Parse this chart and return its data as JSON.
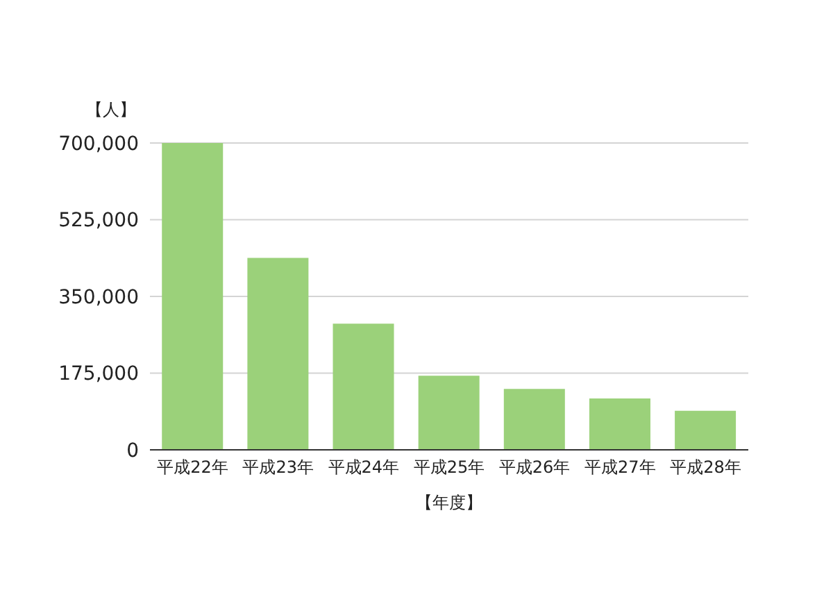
{
  "chart_data": {
    "type": "bar",
    "categories": [
      "平成22年",
      "平成23年",
      "平成24年",
      "平成25年",
      "平成26年",
      "平成27年",
      "平成28年"
    ],
    "values": [
      700000,
      438000,
      288000,
      169000,
      139000,
      117000,
      89000
    ],
    "color": "#9bd17a",
    "ylim": [
      0,
      700000
    ],
    "yticks": [
      {
        "value": 0,
        "label": "0"
      },
      {
        "value": 175000,
        "label": "175,000"
      },
      {
        "value": 350000,
        "label": "350,000"
      },
      {
        "value": 525000,
        "label": "525,000"
      },
      {
        "value": 700000,
        "label": "700,000"
      }
    ],
    "grid": "y",
    "xlabel": "【年度】",
    "ylabel": "【人】"
  }
}
